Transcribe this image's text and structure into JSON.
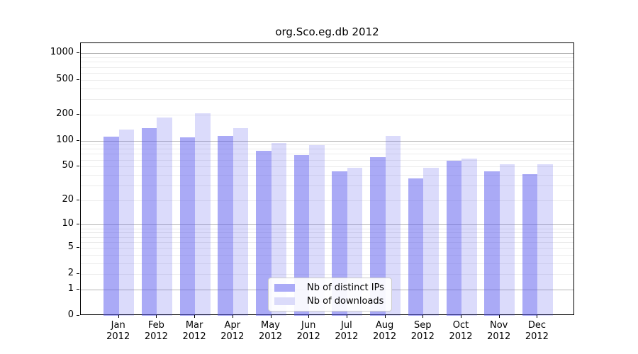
{
  "page": {
    "title": "org.Sco.eg.db 2012"
  },
  "chart_data": {
    "type": "bar",
    "title": "org.Sco.eg.db 2012",
    "categories": [
      "Jan",
      "Feb",
      "Mar",
      "Apr",
      "May",
      "Jun",
      "Jul",
      "Aug",
      "Sep",
      "Oct",
      "Nov",
      "Dec"
    ],
    "year_label": "2012",
    "series": [
      {
        "name": "Nb of distinct IPs",
        "color": "rgba(85,85,238,0.50)",
        "swatch_color": "#aaaaf7",
        "values": [
          110,
          140,
          108,
          113,
          76,
          68,
          44,
          64,
          36,
          58,
          44,
          41
        ]
      },
      {
        "name": "Nb of downloads",
        "color": "rgba(85,85,238,0.21)",
        "swatch_color": "#dbdbfa",
        "values": [
          135,
          185,
          205,
          140,
          93,
          88,
          48,
          114,
          48,
          62,
          53,
          53
        ]
      }
    ],
    "yscale": "log10(1+value)",
    "ylim": [
      0,
      1310
    ],
    "ytick_values": [
      1000,
      500,
      200,
      100,
      50,
      20,
      10,
      5,
      2,
      1,
      0
    ],
    "grid": {
      "major_at": [
        1,
        10,
        100,
        1000
      ],
      "minor_per_decade": [
        2,
        3,
        4,
        5,
        6,
        7,
        8,
        9
      ],
      "major_color": "#b3b3b3",
      "minor_color": "#ececec"
    },
    "legend_position": "inside-bottom-center",
    "xlabel": "",
    "ylabel": ""
  }
}
